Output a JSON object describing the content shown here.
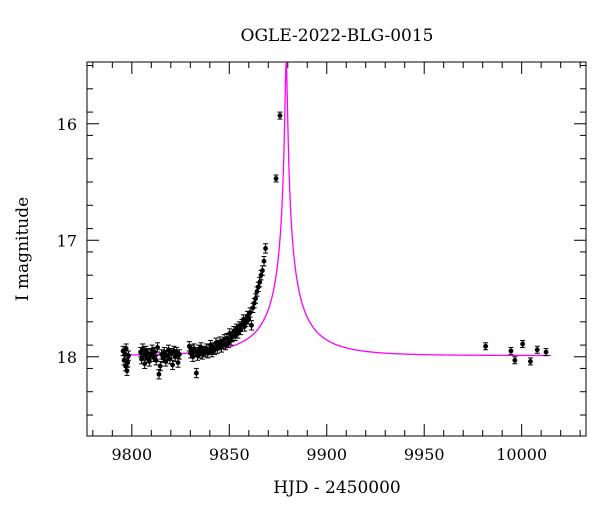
{
  "chart_data": {
    "type": "scatter",
    "title": "OGLE-2022-BLG-0015",
    "xlabel": "HJD - 2450000",
    "ylabel": "I magnitude",
    "xlim": [
      9777,
      10033
    ],
    "ylim": [
      18.68,
      15.47
    ],
    "y_inverted": true,
    "grid": false,
    "x_ticks": [
      9800,
      9850,
      9900,
      9950,
      10000
    ],
    "y_ticks": [
      16,
      17,
      18
    ],
    "colors": {
      "model": "#ff00ff",
      "points": "#000000"
    },
    "series": [
      {
        "type": "scatter",
        "points": [
          [
            9795.5,
            17.95,
            0.04
          ],
          [
            9796.0,
            18.03,
            0.04
          ],
          [
            9796.4,
            17.98,
            0.04
          ],
          [
            9796.8,
            18.08,
            0.04
          ],
          [
            9797.1,
            17.93,
            0.04
          ],
          [
            9797.5,
            18.12,
            0.04
          ],
          [
            9797.9,
            18.05,
            0.04
          ],
          [
            9798.3,
            17.99,
            0.04
          ],
          [
            9804.5,
            17.96,
            0.04
          ],
          [
            9805.0,
            18.02,
            0.04
          ],
          [
            9805.6,
            17.93,
            0.04
          ],
          [
            9806.1,
            17.99,
            0.04
          ],
          [
            9806.6,
            18.06,
            0.04
          ],
          [
            9807.2,
            17.95,
            0.04
          ],
          [
            9807.8,
            18.01,
            0.04
          ],
          [
            9808.3,
            17.97,
            0.04
          ],
          [
            9809.0,
            18.04,
            0.04
          ],
          [
            9809.7,
            17.98,
            0.04
          ],
          [
            9810.4,
            17.94,
            0.04
          ],
          [
            9811.1,
            18.0,
            0.04
          ],
          [
            9811.8,
            17.96,
            0.04
          ],
          [
            9812.5,
            18.03,
            0.04
          ],
          [
            9813.2,
            17.92,
            0.04
          ],
          [
            9813.9,
            18.15,
            0.04
          ],
          [
            9814.6,
            18.08,
            0.04
          ],
          [
            9815.3,
            17.98,
            0.04
          ],
          [
            9816.0,
            18.01,
            0.04
          ],
          [
            9816.7,
            17.96,
            0.04
          ],
          [
            9817.4,
            18.04,
            0.04
          ],
          [
            9818.1,
            17.99,
            0.04
          ],
          [
            9818.8,
            17.94,
            0.04
          ],
          [
            9819.5,
            18.02,
            0.04
          ],
          [
            9820.2,
            17.97,
            0.04
          ],
          [
            9820.9,
            18.07,
            0.04
          ],
          [
            9821.6,
            17.95,
            0.04
          ],
          [
            9822.3,
            18.0,
            0.04
          ],
          [
            9823.0,
            17.96,
            0.04
          ],
          [
            9823.7,
            18.05,
            0.04
          ],
          [
            9824.4,
            17.98,
            0.04
          ],
          [
            9829.5,
            17.91,
            0.04
          ],
          [
            9830.1,
            17.97,
            0.04
          ],
          [
            9830.7,
            17.94,
            0.04
          ],
          [
            9831.3,
            18.0,
            0.04
          ],
          [
            9831.9,
            17.93,
            0.04
          ],
          [
            9832.5,
            17.96,
            0.04
          ],
          [
            9833.1,
            18.14,
            0.04
          ],
          [
            9833.7,
            17.99,
            0.04
          ],
          [
            9834.3,
            17.94,
            0.04
          ],
          [
            9834.9,
            17.97,
            0.04
          ],
          [
            9835.5,
            17.92,
            0.04
          ],
          [
            9836.2,
            17.98,
            0.04
          ],
          [
            9836.9,
            17.95,
            0.04
          ],
          [
            9837.6,
            17.96,
            0.04
          ],
          [
            9838.3,
            17.93,
            0.04
          ],
          [
            9839.0,
            17.97,
            0.04
          ],
          [
            9839.7,
            17.94,
            0.04
          ],
          [
            9840.4,
            17.9,
            0.04
          ],
          [
            9841.1,
            17.96,
            0.04
          ],
          [
            9841.8,
            17.92,
            0.04
          ],
          [
            9842.5,
            17.94,
            0.04
          ],
          [
            9843.2,
            17.88,
            0.04
          ],
          [
            9843.9,
            17.93,
            0.04
          ],
          [
            9844.6,
            17.9,
            0.04
          ],
          [
            9845.3,
            17.87,
            0.04
          ],
          [
            9846.0,
            17.92,
            0.04
          ],
          [
            9846.7,
            17.89,
            0.04
          ],
          [
            9847.4,
            17.85,
            0.04
          ],
          [
            9848.1,
            17.9,
            0.04
          ],
          [
            9848.8,
            17.84,
            0.04
          ],
          [
            9849.5,
            17.88,
            0.04
          ],
          [
            9850.2,
            17.8,
            0.04
          ],
          [
            9850.9,
            17.86,
            0.04
          ],
          [
            9851.6,
            17.83,
            0.04
          ],
          [
            9852.3,
            17.78,
            0.04
          ],
          [
            9853.0,
            17.82,
            0.04
          ],
          [
            9853.7,
            17.76,
            0.04
          ],
          [
            9854.4,
            17.8,
            0.04
          ],
          [
            9855.1,
            17.74,
            0.04
          ],
          [
            9855.8,
            17.77,
            0.04
          ],
          [
            9856.5,
            17.72,
            0.04
          ],
          [
            9857.2,
            17.68,
            0.04
          ],
          [
            9857.9,
            17.74,
            0.04
          ],
          [
            9858.6,
            17.7,
            0.04
          ],
          [
            9859.3,
            17.65,
            0.04
          ],
          [
            9860.0,
            17.68,
            0.04
          ],
          [
            9860.7,
            17.62,
            0.04
          ],
          [
            9861.4,
            17.73,
            0.04
          ],
          [
            9862.1,
            17.58,
            0.04
          ],
          [
            9862.8,
            17.54,
            0.04
          ],
          [
            9863.5,
            17.5,
            0.04
          ],
          [
            9864.2,
            17.44,
            0.04
          ],
          [
            9864.9,
            17.4,
            0.04
          ],
          [
            9865.6,
            17.36,
            0.04
          ],
          [
            9866.3,
            17.3,
            0.04
          ],
          [
            9867.0,
            17.26,
            0.04
          ],
          [
            9867.8,
            17.18,
            0.04
          ],
          [
            9868.6,
            17.07,
            0.04
          ],
          [
            9874.0,
            16.47,
            0.03
          ],
          [
            9876.0,
            15.93,
            0.03
          ],
          [
            9981.5,
            17.91,
            0.03
          ],
          [
            9994.5,
            17.95,
            0.03
          ],
          [
            9996.5,
            18.03,
            0.03
          ],
          [
            10000.5,
            17.89,
            0.03
          ],
          [
            10004.5,
            18.04,
            0.03
          ],
          [
            10008.0,
            17.94,
            0.03
          ],
          [
            10012.5,
            17.96,
            0.03
          ]
        ]
      },
      {
        "type": "line",
        "model": {
          "t0": 9879.2,
          "u0": 0.018,
          "tE": 32,
          "fs": 0.17,
          "I_base": 17.99,
          "x_range": [
            9795,
            10015
          ]
        }
      }
    ]
  }
}
